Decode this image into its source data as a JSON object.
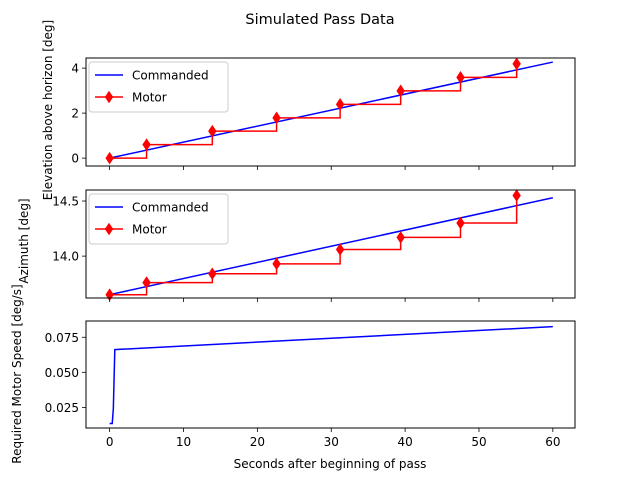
{
  "figure": {
    "suptitle": "Simulated Pass Data",
    "xlabel": "Seconds after beginning of pass"
  },
  "chart_data": [
    {
      "type": "line",
      "ylabel": "Elevation above horizon [deg]",
      "xlim": [
        -3.2,
        63
      ],
      "ylim": [
        -0.35,
        4.45
      ],
      "yticks": [
        0,
        2,
        4
      ],
      "yticklabels": [
        "0",
        "2",
        "4"
      ],
      "xticks": [
        0,
        10,
        20,
        30,
        40,
        50,
        60
      ],
      "legend": {
        "position": "upper-left"
      },
      "series": [
        {
          "name": "Commanded",
          "color": "#0000ff",
          "style": "line",
          "x": [
            0,
            60
          ],
          "y": [
            0,
            4.27
          ]
        },
        {
          "name": "Motor",
          "color": "#ff0000",
          "style": "step-with-diamond-markers",
          "x": [
            0,
            5.0,
            13.9,
            22.6,
            31.2,
            39.4,
            47.5,
            55.1
          ],
          "y": [
            0,
            0.6,
            1.2,
            1.79,
            2.39,
            2.99,
            3.59,
            4.19
          ]
        }
      ]
    },
    {
      "type": "line",
      "ylabel": "Azimuth [deg]",
      "xlim": [
        -3.2,
        63
      ],
      "ylim": [
        13.62,
        14.6
      ],
      "yticks": [
        14.0,
        14.5
      ],
      "yticklabels": [
        "14.0",
        "14.5"
      ],
      "xticks": [
        0,
        10,
        20,
        30,
        40,
        50,
        60
      ],
      "legend": {
        "position": "upper-left"
      },
      "series": [
        {
          "name": "Commanded",
          "color": "#0000ff",
          "style": "line",
          "x": [
            0,
            60
          ],
          "y": [
            13.65,
            14.53
          ]
        },
        {
          "name": "Motor",
          "color": "#ff0000",
          "style": "step-with-diamond-markers",
          "x": [
            0,
            5.0,
            13.9,
            22.6,
            31.2,
            39.4,
            47.5,
            55.1
          ],
          "y": [
            13.65,
            13.76,
            13.84,
            13.93,
            14.06,
            14.17,
            14.3,
            14.55
          ]
        }
      ]
    },
    {
      "type": "line",
      "ylabel": "Required Motor Speed [deg/s]",
      "xlabel": "Seconds after beginning of pass",
      "xlim": [
        -3.2,
        63
      ],
      "ylim": [
        0.0103,
        0.0866
      ],
      "yticks": [
        0.025,
        0.05,
        0.075
      ],
      "yticklabels": [
        "0.025",
        "0.050",
        "0.075"
      ],
      "xticks": [
        0,
        10,
        20,
        30,
        40,
        50,
        60
      ],
      "xticklabels": [
        "0",
        "10",
        "20",
        "30",
        "40",
        "50",
        "60"
      ],
      "series": [
        {
          "color": "#0000ff",
          "style": "line",
          "x": [
            0,
            0.35,
            0.5,
            0.7,
            60
          ],
          "y": [
            0.0135,
            0.0135,
            0.024,
            0.0662,
            0.0826
          ]
        }
      ]
    }
  ]
}
